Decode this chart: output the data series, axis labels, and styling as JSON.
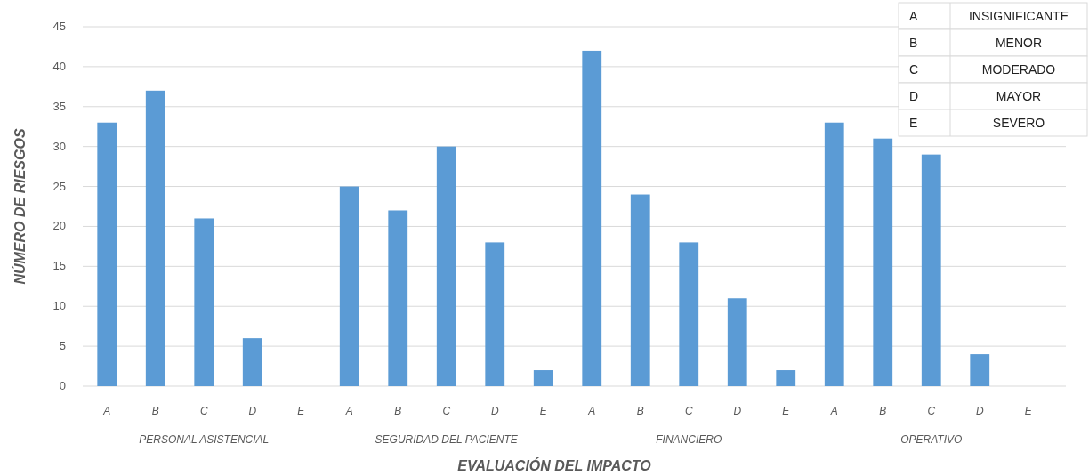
{
  "chart_data": {
    "type": "bar",
    "xlabel": "EVALUACIÓN DEL IMPACTO",
    "ylabel": "NÚMERO DE RIESGOS",
    "categories": [
      "A",
      "B",
      "C",
      "D",
      "E",
      "A",
      "B",
      "C",
      "D",
      "E",
      "A",
      "B",
      "C",
      "D",
      "E",
      "A",
      "B",
      "C",
      "D",
      "E"
    ],
    "values": [
      33,
      37,
      21,
      6,
      0,
      25,
      22,
      30,
      18,
      2,
      42,
      24,
      18,
      11,
      2,
      33,
      31,
      29,
      4,
      0
    ],
    "color": "#5b9bd5",
    "ylim": [
      0,
      45
    ],
    "yticks": [
      0,
      5,
      10,
      15,
      20,
      25,
      30,
      35,
      40,
      45
    ],
    "grid": "y",
    "annotations": [
      "PERSONAL ASISTENCIAL",
      "SEGURIDAD DEL PACIENTE",
      "FINANCIERO",
      "OPERATIVO",
      "A",
      "INSIGNIFICANTE",
      "B",
      "MENOR",
      "C",
      "MODERADO",
      "D",
      "MAYOR",
      "E",
      "SEVERO"
    ]
  }
}
